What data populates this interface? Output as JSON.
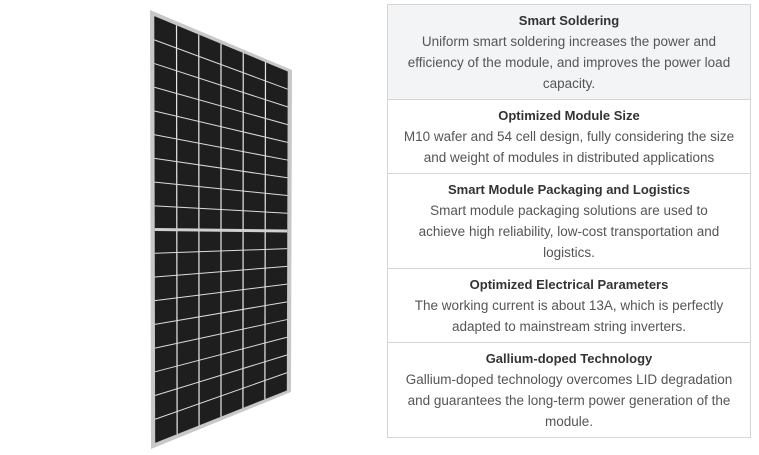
{
  "image": {
    "alt_icon": "solar-panel-image",
    "columns": 6,
    "rows_per_half": 9,
    "frame_color": "#c8c8c8",
    "cell_color": "#1e1e1e"
  },
  "features": [
    {
      "title": "Smart Soldering",
      "desc": "Uniform smart soldering increases the power and efficiency of the module, and improves the power load capacity."
    },
    {
      "title": "Optimized Module Size",
      "desc": "M10 wafer and 54 cell design, fully considering the size and weight of modules in distributed applications"
    },
    {
      "title": "Smart Module Packaging and Logistics",
      "desc": "Smart module packaging solutions are used to achieve high reliability, low-cost transportation and logistics."
    },
    {
      "title": "Optimized Electrical Parameters",
      "desc": "The working current is about 13A, which is perfectly adapted to mainstream string inverters."
    },
    {
      "title": "Gallium-doped Technology",
      "desc": "Gallium-doped technology overcomes LID degradation and guarantees the long-term power generation of the module."
    }
  ]
}
